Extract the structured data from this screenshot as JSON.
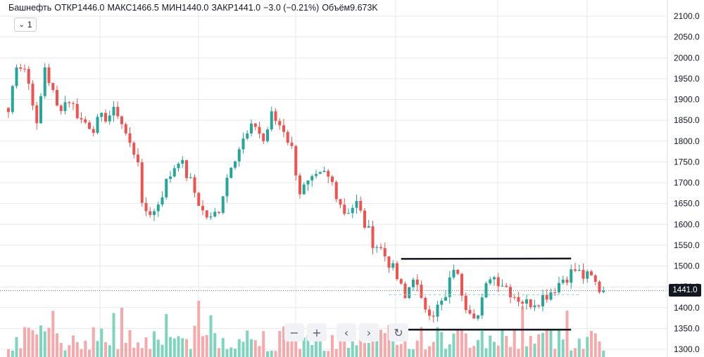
{
  "legend": {
    "symbol": "Башнефть",
    "open_label": "ОТКР",
    "open_value": "1446.0",
    "high_label": "МАКС",
    "high_value": "1466.5",
    "low_label": "МИН",
    "low_value": "1440.0",
    "close_label": "ЗАКР",
    "close_value": "1441.0",
    "change": "−3.0 (−0.21%)",
    "volume_label": "Объём",
    "volume_value": "9.673K"
  },
  "interval_selector": {
    "label": "1",
    "icon": "chevron-down-icon"
  },
  "toolbar": {
    "buttons": [
      {
        "name": "zoom-out-button",
        "label": "−",
        "icon": "minus-icon"
      },
      {
        "name": "zoom-in-button",
        "label": "+",
        "icon": "plus-icon"
      },
      {
        "name": "scroll-left-button",
        "label": "‹",
        "icon": "chevron-left-icon"
      },
      {
        "name": "scroll-right-button",
        "label": "›",
        "icon": "chevron-right-icon"
      },
      {
        "name": "reset-button",
        "label": "↻",
        "icon": "reset-icon"
      }
    ]
  },
  "last_price_label": "1441.0",
  "colors": {
    "up": "#26a69a",
    "down": "#ef5350",
    "up_volume": "#7fd4bd",
    "down_volume": "#f7a8aa",
    "grid": "#e6e8ec",
    "drawing": "#131722"
  },
  "chart_data": {
    "type": "candlestick",
    "y_axis": {
      "position": "right",
      "min": 1300,
      "max": 2100,
      "ticks": [
        2100,
        2050,
        2000,
        1950,
        1900,
        1850,
        1800,
        1750,
        1700,
        1650,
        1600,
        1550,
        1500,
        1450,
        1400,
        1350,
        1300
      ],
      "tick_labels": [
        "2100.0",
        "2050.0",
        "2000.0",
        "1950.0",
        "1900.0",
        "1850.0",
        "1800.0",
        "1750.0",
        "1700.0",
        "1650.0",
        "1600.0",
        "1550.0",
        "1500.0",
        "1450.0",
        "1400.0",
        "1350.0",
        "1300.0"
      ]
    },
    "grid": true,
    "last_close": 1441.0,
    "price_keypoints": [
      [
        0,
        1870
      ],
      [
        2,
        1990
      ],
      [
        4,
        1975
      ],
      [
        6,
        1900
      ],
      [
        7,
        1830
      ],
      [
        9,
        1980
      ],
      [
        12,
        1880
      ],
      [
        15,
        1900
      ],
      [
        18,
        1850
      ],
      [
        21,
        1835
      ],
      [
        24,
        1860
      ],
      [
        27,
        1870
      ],
      [
        30,
        1790
      ],
      [
        32,
        1760
      ],
      [
        33,
        1635
      ],
      [
        36,
        1630
      ],
      [
        39,
        1700
      ],
      [
        42,
        1760
      ],
      [
        45,
        1700
      ],
      [
        48,
        1630
      ],
      [
        50,
        1610
      ],
      [
        52,
        1640
      ],
      [
        55,
        1750
      ],
      [
        58,
        1800
      ],
      [
        61,
        1840
      ],
      [
        63,
        1800
      ],
      [
        65,
        1860
      ],
      [
        68,
        1830
      ],
      [
        70,
        1780
      ],
      [
        72,
        1680
      ],
      [
        75,
        1700
      ],
      [
        78,
        1720
      ],
      [
        80,
        1700
      ],
      [
        83,
        1630
      ],
      [
        86,
        1650
      ],
      [
        88,
        1600
      ],
      [
        90,
        1560
      ],
      [
        92,
        1540
      ],
      [
        94,
        1510
      ],
      [
        96,
        1470
      ],
      [
        98,
        1420
      ],
      [
        100,
        1480
      ],
      [
        102,
        1410
      ],
      [
        105,
        1390
      ],
      [
        108,
        1420
      ],
      [
        110,
        1500
      ],
      [
        113,
        1410
      ],
      [
        116,
        1380
      ],
      [
        119,
        1480
      ],
      [
        122,
        1460
      ],
      [
        125,
        1430
      ],
      [
        128,
        1410
      ],
      [
        131,
        1420
      ],
      [
        134,
        1440
      ],
      [
        137,
        1470
      ],
      [
        140,
        1490
      ],
      [
        142,
        1475
      ],
      [
        144,
        1470
      ],
      [
        146,
        1445
      ],
      [
        147,
        1441
      ]
    ],
    "drawings": [
      {
        "type": "trendline",
        "from": {
          "bar": 97,
          "price": 1517
        },
        "to": {
          "bar": 139,
          "price": 1518
        }
      },
      {
        "type": "trendline",
        "from": {
          "bar": 97,
          "price": 1347
        },
        "to": {
          "bar": 139,
          "price": 1347
        }
      },
      {
        "type": "price_line",
        "price": 1441.0,
        "style": "dotted"
      },
      {
        "type": "price_line",
        "price": 1431,
        "style": "dashed",
        "from_bar": 94,
        "to_bar": 141
      }
    ]
  }
}
